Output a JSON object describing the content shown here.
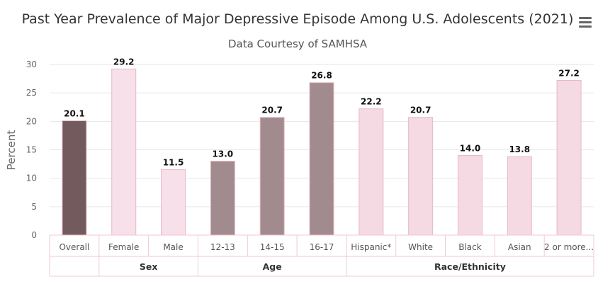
{
  "chart_data": {
    "type": "bar",
    "title": "Past Year Prevalence of Major Depressive Episode Among U.S. Adolescents (2021)",
    "subtitle": "Data Courtesy of SAMHSA",
    "ylabel": "Percent",
    "xlabel": "",
    "ylim": [
      0,
      30
    ],
    "yticks": [
      0,
      5,
      10,
      15,
      20,
      25,
      30
    ],
    "grid": true,
    "legend": "none",
    "categories": [
      "Overall",
      "Female",
      "Male",
      "12-13",
      "14-15",
      "16-17",
      "Hispanic*",
      "White",
      "Black",
      "Asian",
      "2 or more..."
    ],
    "values": [
      20.1,
      29.2,
      11.5,
      13.0,
      20.7,
      26.8,
      22.2,
      20.7,
      14.0,
      13.8,
      27.2
    ],
    "value_labels": [
      "20.1",
      "29.2",
      "11.5",
      "13.0",
      "20.7",
      "26.8",
      "22.2",
      "20.7",
      "14.0",
      "13.8",
      "27.2"
    ],
    "groups": [
      {
        "name": "",
        "start": 0,
        "count": 1
      },
      {
        "name": "Sex",
        "start": 1,
        "count": 2
      },
      {
        "name": "Age",
        "start": 3,
        "count": 3
      },
      {
        "name": "Race/Ethnicity",
        "start": 6,
        "count": 5
      }
    ],
    "bar_colors": [
      "#735a5d",
      "#f7e0ea",
      "#f7e0ea",
      "#a28b8e",
      "#a28b8e",
      "#a28b8e",
      "#f5d9e3",
      "#f5d9e3",
      "#f5d9e3",
      "#f5d9e3",
      "#f5d9e3"
    ],
    "bar_stroke": "#e6b9c8"
  },
  "menu_icon": "hamburger-menu-icon"
}
